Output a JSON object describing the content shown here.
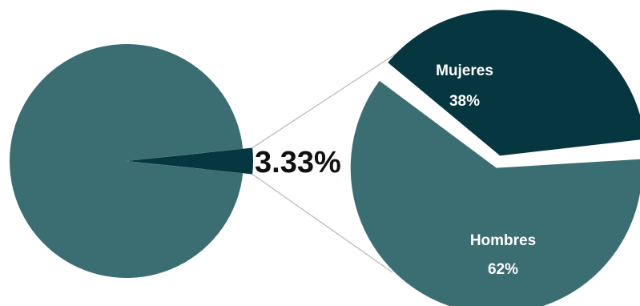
{
  "chart_data": [
    {
      "type": "pie",
      "title": "",
      "slices": [
        {
          "label": "",
          "value": 96.67,
          "color": "#3b6e72"
        },
        {
          "label": "",
          "value": 3.33,
          "color": "#06363f"
        }
      ],
      "callout": {
        "text": "3.33%",
        "slice_index": 1
      }
    },
    {
      "type": "pie",
      "title": "",
      "slices": [
        {
          "label": "Mujeres",
          "value": 38,
          "value_label": "38%",
          "color": "#06363f"
        },
        {
          "label": "Hombres",
          "value": 62,
          "value_label": "62%",
          "color": "#3b6e72"
        }
      ]
    }
  ]
}
